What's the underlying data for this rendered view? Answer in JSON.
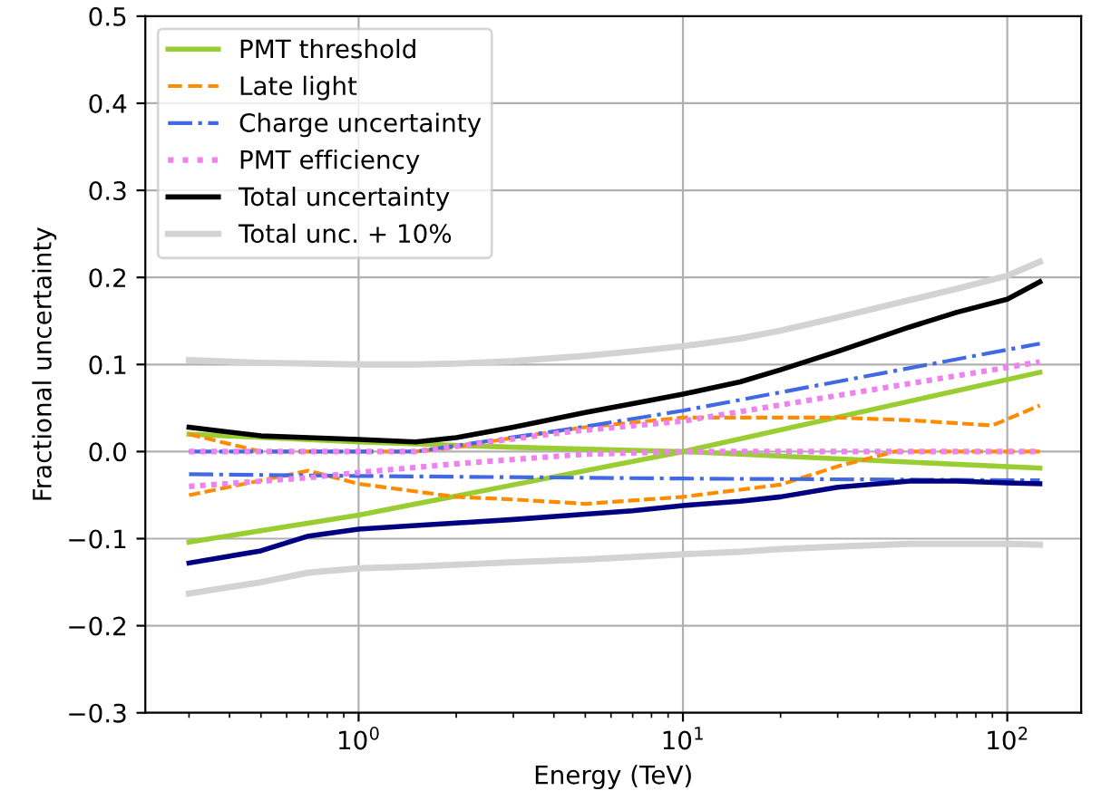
{
  "chart_data": {
    "type": "line",
    "xlabel": "Energy (TeV)",
    "ylabel": "Fractional uncertainty",
    "log": "x",
    "grid": true,
    "legend": "top left",
    "xlim": [
      0.22,
      169
    ],
    "xticks": [
      {
        "value": 1,
        "label": "10$^{0}$"
      },
      {
        "value": 10,
        "label": "10$^{1}$"
      },
      {
        "value": 100,
        "label": "10$^{2}$"
      }
    ],
    "ylim": [
      -0.3,
      0.5
    ],
    "yticks": [
      {
        "value": -0.3,
        "label": "−0.3"
      },
      {
        "value": -0.2,
        "label": "−0.2"
      },
      {
        "value": -0.1,
        "label": "−0.1"
      },
      {
        "value": 0,
        "label": "0.0"
      },
      {
        "value": 0.1,
        "label": "0.1"
      },
      {
        "value": 0.2,
        "label": "0.2"
      },
      {
        "value": 0.3,
        "label": "0.3"
      },
      {
        "value": 0.4,
        "label": "0.4"
      },
      {
        "value": 0.5,
        "label": "0.5"
      }
    ],
    "series": [
      {
        "name": "PMT threshold",
        "color": "#9acd32",
        "line_style": "solid",
        "x": [
          0.3,
          1,
          3,
          10,
          126
        ],
        "values": [
          0.02,
          0.011,
          0.005,
          0.0,
          -0.019
        ]
      },
      {
        "color": "#9acd32",
        "line_style": "solid",
        "x": [
          0.3,
          1,
          10,
          126
        ],
        "values": [
          -0.104,
          -0.073,
          0.0,
          0.091
        ]
      },
      {
        "name": "Late light",
        "color": "#ff8c00",
        "line_style": "dashed",
        "x": [
          0.3,
          0.5,
          1,
          1.5,
          2,
          3,
          5,
          10,
          30,
          50,
          90,
          126
        ],
        "values": [
          0.02,
          0.0,
          0.0,
          0.0,
          0.005,
          0.016,
          0.028,
          0.039,
          0.039,
          0.036,
          0.03,
          0.053
        ]
      },
      {
        "color": "#ff8c00",
        "line_style": "dashed",
        "x": [
          0.3,
          0.7,
          1,
          2,
          3,
          5,
          10,
          20,
          30,
          45,
          126
        ],
        "values": [
          -0.05,
          -0.022,
          -0.037,
          -0.052,
          -0.055,
          -0.06,
          -0.052,
          -0.038,
          -0.017,
          0.0,
          0.0
        ]
      },
      {
        "name": "Charge uncertainty",
        "color": "#4169e1",
        "line_style": "dashdot",
        "x": [
          0.3,
          1.5,
          4.5,
          10,
          126
        ],
        "values": [
          0.0,
          0.0,
          0.026,
          0.047,
          0.124
        ]
      },
      {
        "color": "#4169e1",
        "line_style": "dashdot",
        "x": [
          0.3,
          1,
          10,
          126
        ],
        "values": [
          -0.026,
          -0.028,
          -0.031,
          -0.033
        ]
      },
      {
        "name": "PMT efficiency",
        "color": "#ee82ee",
        "line_style": "dotted",
        "x": [
          0.3,
          1.5,
          4.5,
          10,
          126
        ],
        "values": [
          0.0,
          0.0,
          0.023,
          0.035,
          0.103
        ]
      },
      {
        "color": "#ee82ee",
        "line_style": "dotted",
        "x": [
          0.3,
          0.7,
          1,
          2,
          5,
          10,
          126
        ],
        "values": [
          -0.04,
          -0.03,
          -0.024,
          -0.014,
          -0.003,
          0.0,
          0.0
        ]
      },
      {
        "name": "Total uncertainty",
        "color": "#000000",
        "line_style": "solid",
        "x": [
          0.3,
          0.5,
          0.7,
          1,
          1.5,
          2,
          3,
          5,
          7,
          10,
          15,
          20,
          30,
          50,
          70,
          100,
          126
        ],
        "values": [
          0.028,
          0.018,
          0.016,
          0.014,
          0.011,
          0.016,
          0.028,
          0.045,
          0.055,
          0.066,
          0.08,
          0.094,
          0.115,
          0.143,
          0.16,
          0.175,
          0.195
        ]
      },
      {
        "color": "#000080",
        "line_style": "solid",
        "x": [
          0.3,
          0.5,
          0.7,
          1,
          1.5,
          2,
          3,
          5,
          7,
          10,
          15,
          20,
          30,
          50,
          70,
          100,
          126
        ],
        "values": [
          -0.128,
          -0.114,
          -0.097,
          -0.089,
          -0.085,
          -0.082,
          -0.078,
          -0.072,
          -0.068,
          -0.062,
          -0.057,
          -0.052,
          -0.041,
          -0.034,
          -0.034,
          -0.036,
          -0.037
        ]
      },
      {
        "name": "Total unc. + 10%",
        "color": "#d3d3d3",
        "line_style": "solid",
        "x": [
          0.3,
          0.5,
          0.7,
          1,
          1.5,
          2,
          3,
          5,
          7,
          10,
          15,
          20,
          30,
          50,
          70,
          100,
          126
        ],
        "values": [
          0.105,
          0.102,
          0.101,
          0.1,
          0.1,
          0.101,
          0.104,
          0.11,
          0.115,
          0.121,
          0.13,
          0.139,
          0.154,
          0.174,
          0.187,
          0.202,
          0.218
        ]
      },
      {
        "color": "#d3d3d3",
        "line_style": "solid",
        "x": [
          0.3,
          0.5,
          0.7,
          1,
          1.5,
          2,
          3,
          5,
          7,
          10,
          15,
          20,
          30,
          50,
          70,
          100,
          126
        ],
        "values": [
          -0.163,
          -0.15,
          -0.139,
          -0.134,
          -0.132,
          -0.13,
          -0.127,
          -0.124,
          -0.121,
          -0.118,
          -0.115,
          -0.112,
          -0.109,
          -0.106,
          -0.106,
          -0.106,
          -0.107
        ]
      }
    ]
  }
}
